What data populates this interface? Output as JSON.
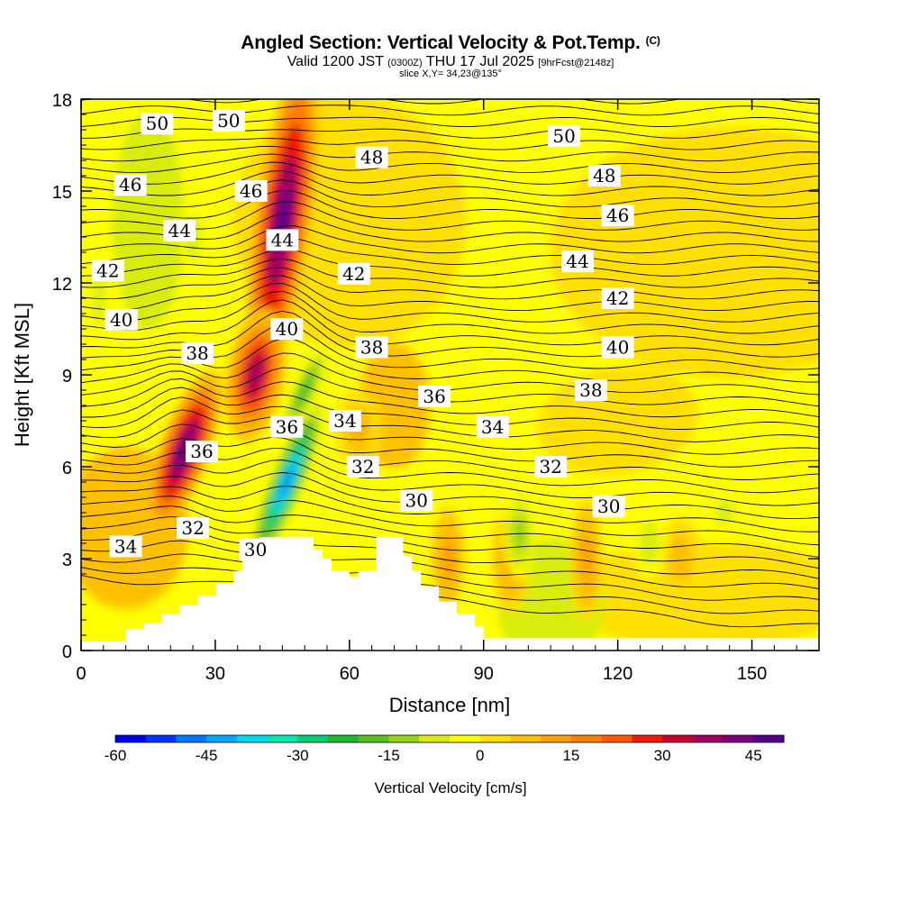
{
  "header": {
    "title": "Angled Section: Vertical Velocity & Pot.Temp.",
    "title_mark": "(C)",
    "valid_prefix": "Valid 1200 JST",
    "valid_small": "(0300Z)",
    "valid_suffix": "THU 17 Jul 2025",
    "valid_fcst": "[9hrFcst@2148z]",
    "slice": "slice X,Y= 34,23@135°"
  },
  "chart_data": {
    "type": "heatmap",
    "xlabel": "Distance [nm]",
    "ylabel": "Height [Kft MSL]",
    "xlim": [
      0,
      165
    ],
    "ylim": [
      0,
      18
    ],
    "x_ticks": [
      0,
      30,
      60,
      90,
      120,
      150
    ],
    "y_ticks": [
      0,
      3,
      6,
      9,
      12,
      15,
      18
    ],
    "colorbar": {
      "label": "Vertical Velocity [cm/s]",
      "ticks": [
        -60,
        -45,
        -30,
        -15,
        0,
        15,
        30,
        45
      ],
      "range": [
        -60,
        50
      ],
      "colors": [
        "#0000ee",
        "#0033ff",
        "#0077ff",
        "#00a8ff",
        "#00d8ee",
        "#00e8b0",
        "#00d070",
        "#20b830",
        "#58c020",
        "#98d418",
        "#d8ec10",
        "#ffff00",
        "#ffe000",
        "#ffc000",
        "#ffa000",
        "#ff8000",
        "#ff5800",
        "#f01800",
        "#cc0030",
        "#a00060",
        "#7a0080",
        "#50008a"
      ]
    },
    "updrafts_cm_s": [
      {
        "x": 23,
        "z": 6.5,
        "peak": 50
      },
      {
        "x": 45,
        "z": 14,
        "peak": 50
      },
      {
        "x": 39,
        "z": 9,
        "peak": 40
      },
      {
        "x": 62,
        "z": 7.2,
        "peak": 12
      },
      {
        "x": 82,
        "z": 3,
        "peak": 15
      },
      {
        "x": 96,
        "z": 3,
        "peak": 15
      },
      {
        "x": 113,
        "z": 3,
        "peak": 15
      },
      {
        "x": 134,
        "z": 3,
        "peak": 10
      }
    ],
    "downdrafts_cm_s": [
      {
        "x": 46,
        "z": 5.5,
        "peak": -50
      },
      {
        "x": 50,
        "z": 8.5,
        "peak": -25
      },
      {
        "x": 98,
        "z": 3.8,
        "peak": -15
      },
      {
        "x": 127,
        "z": 3.5,
        "peak": -10
      },
      {
        "x": 144,
        "z": 4.5,
        "peak": -8
      },
      {
        "x": 4,
        "z": 11.5,
        "peak": -10
      },
      {
        "x": 25,
        "z": 13.5,
        "peak": -10
      }
    ],
    "terrain_kft": {
      "x": [
        0,
        10,
        14,
        18,
        22,
        26,
        30,
        34,
        36,
        38,
        40,
        42,
        50,
        52,
        54,
        56,
        60,
        62,
        66,
        70,
        72,
        74,
        76,
        80,
        84,
        88,
        90,
        165
      ],
      "z": [
        0.3,
        0.7,
        0.9,
        1.2,
        1.5,
        1.8,
        2.2,
        2.6,
        3.0,
        3.3,
        3.7,
        3.7,
        3.7,
        3.3,
        3.0,
        2.6,
        2.4,
        2.6,
        3.7,
        3.7,
        3.1,
        2.6,
        2.1,
        1.6,
        1.2,
        0.8,
        0.4,
        0.2
      ]
    },
    "isentrope_labels": [
      {
        "x": 17,
        "z": 17.2,
        "v": "50"
      },
      {
        "x": 33,
        "z": 17.3,
        "v": "50"
      },
      {
        "x": 108,
        "z": 16.8,
        "v": "50"
      },
      {
        "x": 65,
        "z": 16.1,
        "v": "48"
      },
      {
        "x": 117,
        "z": 15.5,
        "v": "48"
      },
      {
        "x": 11,
        "z": 15.2,
        "v": "46"
      },
      {
        "x": 38,
        "z": 15.0,
        "v": "46"
      },
      {
        "x": 120,
        "z": 14.2,
        "v": "46"
      },
      {
        "x": 22,
        "z": 13.7,
        "v": "44"
      },
      {
        "x": 45,
        "z": 13.4,
        "v": "44"
      },
      {
        "x": 111,
        "z": 12.7,
        "v": "44"
      },
      {
        "x": 6,
        "z": 12.4,
        "v": "42"
      },
      {
        "x": 61,
        "z": 12.3,
        "v": "42"
      },
      {
        "x": 120,
        "z": 11.5,
        "v": "42"
      },
      {
        "x": 9,
        "z": 10.8,
        "v": "40"
      },
      {
        "x": 46,
        "z": 10.5,
        "v": "40"
      },
      {
        "x": 120,
        "z": 9.9,
        "v": "40"
      },
      {
        "x": 26,
        "z": 9.7,
        "v": "38"
      },
      {
        "x": 65,
        "z": 9.9,
        "v": "38"
      },
      {
        "x": 114,
        "z": 8.5,
        "v": "38"
      },
      {
        "x": 79,
        "z": 8.3,
        "v": "36"
      },
      {
        "x": 27,
        "z": 6.5,
        "v": "36"
      },
      {
        "x": 46,
        "z": 7.3,
        "v": "36"
      },
      {
        "x": 59,
        "z": 7.5,
        "v": "34"
      },
      {
        "x": 92,
        "z": 7.3,
        "v": "34"
      },
      {
        "x": 10,
        "z": 3.4,
        "v": "34"
      },
      {
        "x": 63,
        "z": 6.0,
        "v": "32"
      },
      {
        "x": 105,
        "z": 6.0,
        "v": "32"
      },
      {
        "x": 25,
        "z": 4.0,
        "v": "32"
      },
      {
        "x": 75,
        "z": 4.9,
        "v": "30"
      },
      {
        "x": 118,
        "z": 4.7,
        "v": "30"
      },
      {
        "x": 39,
        "z": 3.3,
        "v": "30"
      }
    ]
  }
}
